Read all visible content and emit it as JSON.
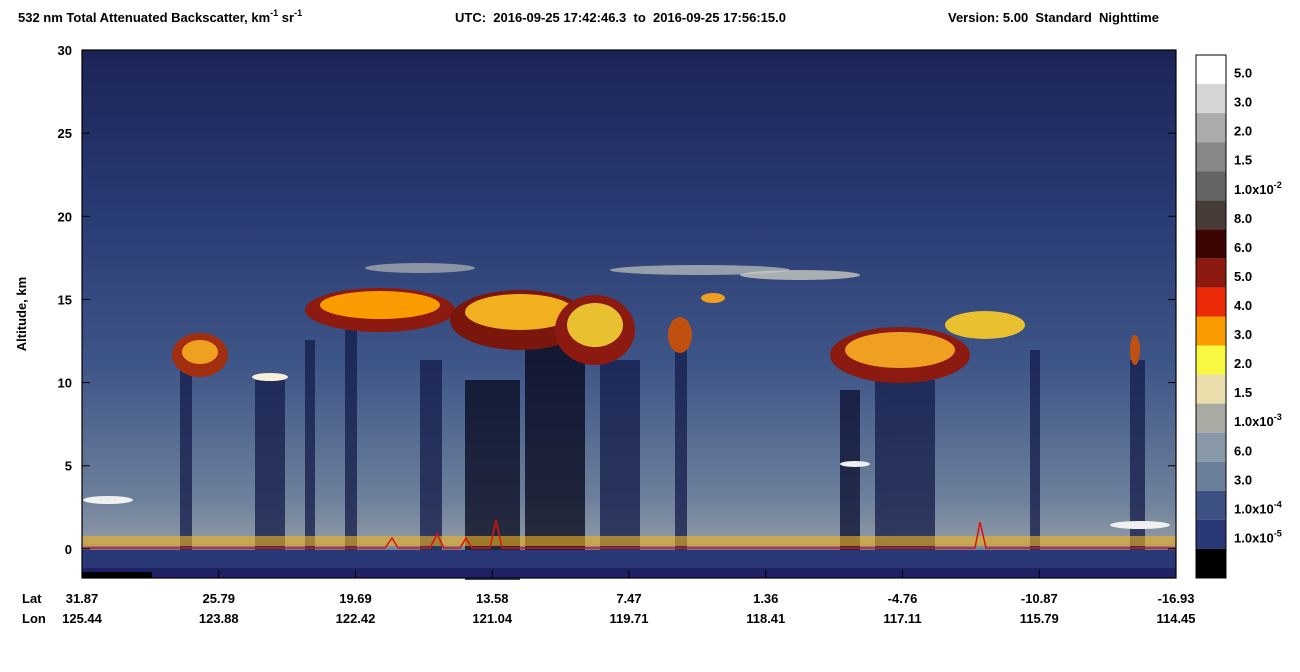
{
  "chart_data": {
    "type": "heatmap",
    "title": {
      "main": "532 nm Total Attenuated Backscatter, km",
      "exp1": "-1",
      "unit2": " sr",
      "exp2": "-1"
    },
    "utc": "UTC:  2016-09-25 17:42:46.3  to  2016-09-25 17:56:15.0",
    "version": "Version: 5.00  Standard  Nighttime",
    "ylabel": "Altitude, km",
    "ylim": [
      -1.75,
      30
    ],
    "yticks": [
      0,
      5,
      10,
      15,
      20,
      25,
      30
    ],
    "x_row_labels": [
      "Lat",
      "Lon"
    ],
    "lat_ticks": [
      31.87,
      25.79,
      19.69,
      13.58,
      7.47,
      1.36,
      -4.76,
      -10.87,
      -16.93
    ],
    "lon_ticks": [
      125.44,
      123.88,
      122.42,
      121.04,
      119.71,
      118.41,
      117.11,
      115.79,
      114.45
    ],
    "colorbar": [
      {
        "color": "#ffffff",
        "label": "5.0"
      },
      {
        "color": "#d6d6d6",
        "label": "3.0"
      },
      {
        "color": "#ababab",
        "label": "2.0"
      },
      {
        "color": "#888888",
        "label": "1.5"
      },
      {
        "color": "#646464",
        "label": "1.0x10",
        "exp": "-2"
      },
      {
        "color": "#483c38",
        "label": "8.0"
      },
      {
        "color": "#3a0402",
        "label": "6.0"
      },
      {
        "color": "#8c1a10",
        "label": "5.0"
      },
      {
        "color": "#ec2a08",
        "label": "4.0"
      },
      {
        "color": "#f89c00",
        "label": "3.0"
      },
      {
        "color": "#f8f840",
        "label": "2.0"
      },
      {
        "color": "#ebdcac",
        "label": "1.5"
      },
      {
        "color": "#a9aaa2",
        "label": "1.0x10",
        "exp": "-3"
      },
      {
        "color": "#8898a8",
        "label": "6.0"
      },
      {
        "color": "#6a7f9a",
        "label": "3.0"
      },
      {
        "color": "#3c5082",
        "label": "1.0x10",
        "exp": "-4"
      },
      {
        "color": "#2a3878",
        "label": "1.0x10",
        "exp": "-5"
      },
      {
        "color": "#000000",
        "label": null
      }
    ]
  }
}
